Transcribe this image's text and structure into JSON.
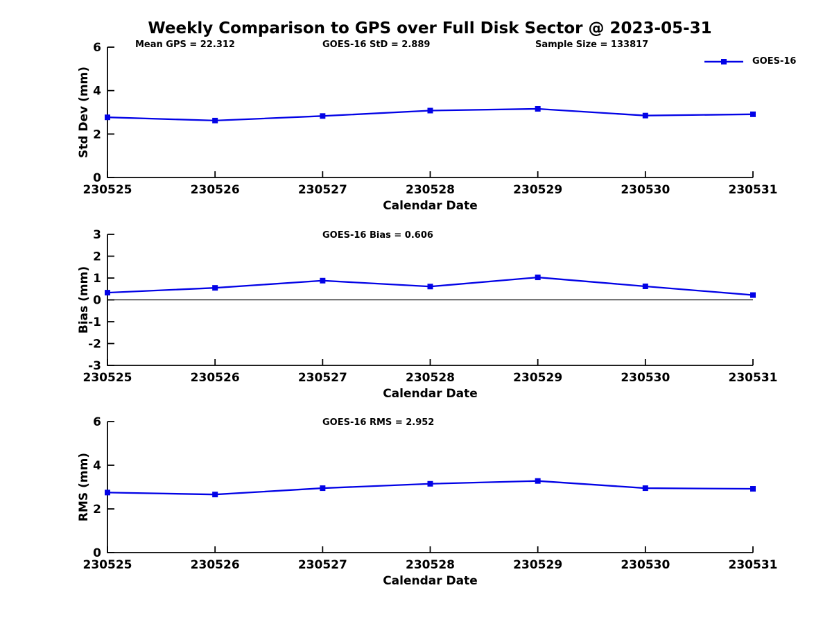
{
  "header": {
    "title": "Weekly Comparison to GPS over Full Disk Sector @ 2023-05-31",
    "annotations": {
      "mean_gps": "Mean GPS = 22.312",
      "goes16_std": "GOES-16 StD = 2.889",
      "sample_size": "Sample Size = 133817"
    }
  },
  "legend": {
    "label": "GOES-16",
    "marker": "square",
    "position": "top-right"
  },
  "colors": {
    "series_line": "#0202e6",
    "axis": "#000000",
    "background": "#ffffff",
    "text": "#000000"
  },
  "chart_data": [
    {
      "type": "line",
      "name": "std-dev",
      "subtitle": "",
      "xlabel": "Calendar Date",
      "ylabel": "Std Dev (mm)",
      "categories": [
        "230525",
        "230526",
        "230527",
        "230528",
        "230529",
        "230530",
        "230531"
      ],
      "series": [
        {
          "name": "GOES-16",
          "values": [
            2.77,
            2.62,
            2.83,
            3.08,
            3.16,
            2.85,
            2.91
          ]
        }
      ],
      "ylim": [
        0,
        6
      ],
      "yticks": [
        0,
        2,
        4,
        6
      ],
      "zero_line": false,
      "grid": false,
      "legend_position": "above-top-right"
    },
    {
      "type": "line",
      "name": "bias",
      "subtitle": "GOES-16 Bias  = 0.606",
      "xlabel": "Calendar Date",
      "ylabel": "Bias (mm)",
      "categories": [
        "230525",
        "230526",
        "230527",
        "230528",
        "230529",
        "230530",
        "230531"
      ],
      "series": [
        {
          "name": "GOES-16",
          "values": [
            0.33,
            0.55,
            0.88,
            0.61,
            1.03,
            0.62,
            0.22
          ]
        }
      ],
      "ylim": [
        -3,
        3
      ],
      "yticks": [
        -3,
        -2,
        -1,
        0,
        1,
        2,
        3
      ],
      "zero_line": true,
      "grid": false
    },
    {
      "type": "line",
      "name": "rms",
      "subtitle": "GOES-16 RMS = 2.952",
      "xlabel": "Calendar Date",
      "ylabel": "RMS (mm)",
      "categories": [
        "230525",
        "230526",
        "230527",
        "230528",
        "230529",
        "230530",
        "230531"
      ],
      "series": [
        {
          "name": "GOES-16",
          "values": [
            2.75,
            2.66,
            2.95,
            3.15,
            3.28,
            2.95,
            2.92
          ]
        }
      ],
      "ylim": [
        0,
        6
      ],
      "yticks": [
        0,
        2,
        4,
        6
      ],
      "zero_line": false,
      "grid": false
    }
  ]
}
